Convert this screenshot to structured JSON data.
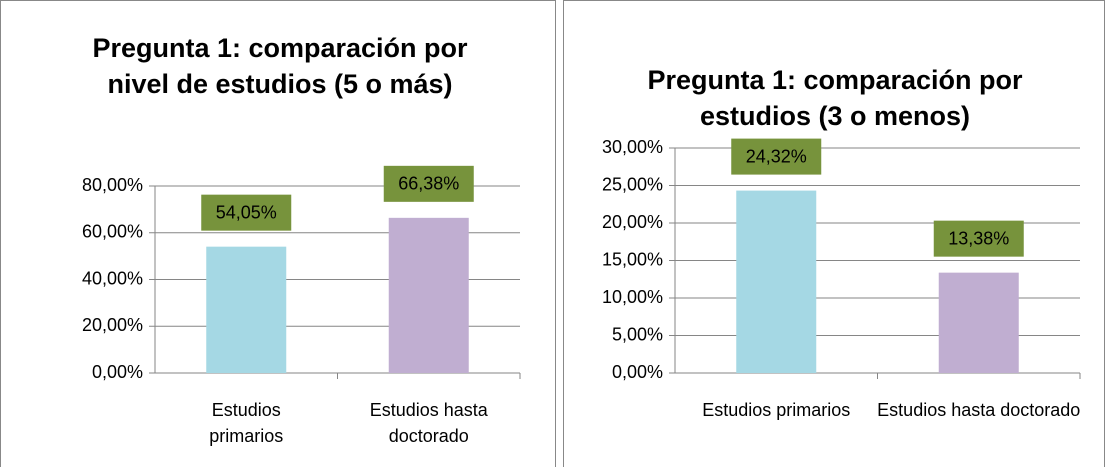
{
  "chart_data": [
    {
      "type": "bar",
      "title": "Pregunta 1: comparación por nivel de estudios (5 o más)",
      "categories": [
        "Estudios primarios",
        "Estudios hasta doctorado"
      ],
      "values": [
        54.05,
        66.38
      ],
      "value_labels": [
        "54,05%",
        "66,38%"
      ],
      "colors": [
        "#a5d8e4",
        "#c0aed1"
      ],
      "label_color": "#77933c",
      "ylim": [
        0,
        80
      ],
      "yticks": [
        {
          "value": 0,
          "label": "0,00%"
        },
        {
          "value": 20,
          "label": "20,00%"
        },
        {
          "value": 40,
          "label": "40,00%"
        },
        {
          "value": 60,
          "label": "60,00%"
        },
        {
          "value": 80,
          "label": "80,00%"
        }
      ],
      "grid": true
    },
    {
      "type": "bar",
      "title": "Pregunta 1: comparación por estudios (3 o menos)",
      "categories": [
        "Estudios primarios",
        "Estudios hasta doctorado"
      ],
      "values": [
        24.32,
        13.38
      ],
      "value_labels": [
        "24,32%",
        "13,38%"
      ],
      "colors": [
        "#a5d8e4",
        "#c0aed1"
      ],
      "label_color": "#77933c",
      "ylim": [
        0,
        30
      ],
      "yticks": [
        {
          "value": 0,
          "label": "0,00%"
        },
        {
          "value": 5,
          "label": "5,00%"
        },
        {
          "value": 10,
          "label": "10,00%"
        },
        {
          "value": 15,
          "label": "15,00%"
        },
        {
          "value": 20,
          "label": "20,00%"
        },
        {
          "value": 25,
          "label": "25,00%"
        },
        {
          "value": 30,
          "label": "30,00%"
        }
      ],
      "grid": true
    }
  ]
}
